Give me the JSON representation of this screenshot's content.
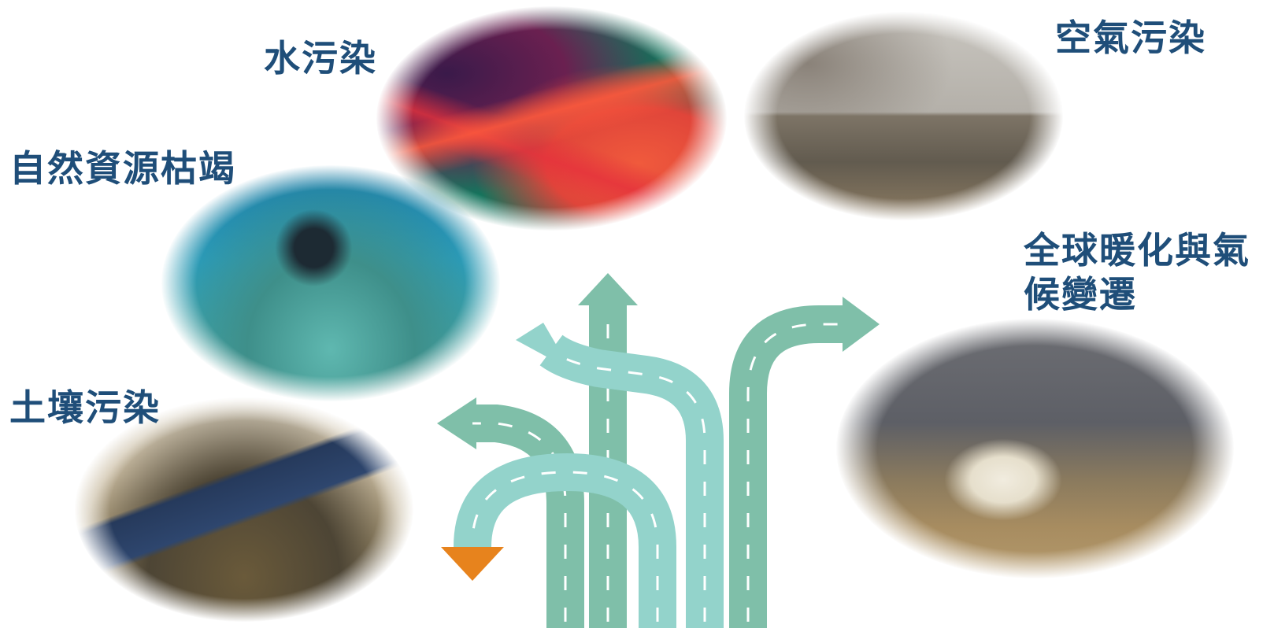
{
  "labels": {
    "water": "水污染",
    "air": "空氣污染",
    "natural": "自然資源枯竭",
    "warming": "全球暖化與氣候變遷",
    "soil": "土壤污染"
  },
  "images": {
    "water": "water-pollution-photo",
    "air": "air-pollution-photo",
    "natural": "resource-depletion-photo",
    "warming": "global-warming-photo",
    "soil": "soil-pollution-photo"
  },
  "colors": {
    "label": "#1f4e79",
    "road_dark": "#7fbfa9",
    "road_light": "#93d3cb",
    "arrow_orange": "#e7831d",
    "lane_line": "#ffffff"
  }
}
